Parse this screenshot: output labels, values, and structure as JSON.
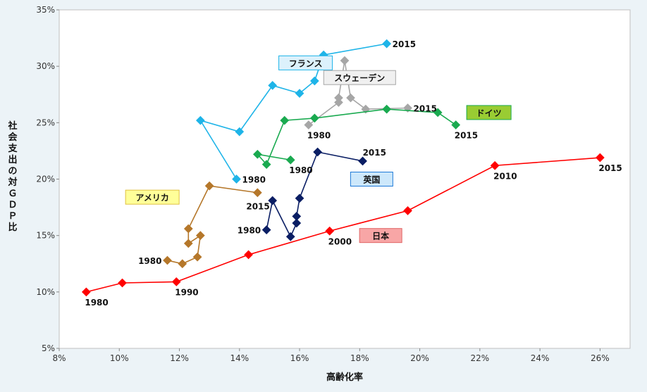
{
  "chart_data": {
    "type": "line",
    "xlabel": "高齢化率",
    "ylabel": "社会支出の対ＧＤＰ比",
    "xlim": [
      0.08,
      0.27
    ],
    "ylim": [
      0.05,
      0.35
    ],
    "x_ticks": [
      "8%",
      "10%",
      "12%",
      "14%",
      "16%",
      "18%",
      "20%",
      "22%",
      "24%",
      "26%"
    ],
    "y_ticks": [
      "5%",
      "10%",
      "15%",
      "20%",
      "25%",
      "30%",
      "35%"
    ],
    "grid": false,
    "series": [
      {
        "name": "日本",
        "color": "#ff0000",
        "points": [
          [
            0.089,
            0.1
          ],
          [
            0.101,
            0.108
          ],
          [
            0.119,
            0.109
          ],
          [
            0.143,
            0.133
          ],
          [
            0.17,
            0.154
          ],
          [
            0.196,
            0.172
          ],
          [
            0.225,
            0.212
          ],
          [
            0.26,
            0.219
          ]
        ],
        "labels": [
          {
            "text": "1980",
            "point": 0,
            "pos": "below"
          },
          {
            "text": "1990",
            "point": 2,
            "pos": "below"
          },
          {
            "text": "2000",
            "point": 4,
            "pos": "below"
          },
          {
            "text": "2010",
            "point": 6,
            "pos": "below"
          },
          {
            "text": "2015",
            "point": 7,
            "pos": "below"
          }
        ]
      },
      {
        "name": "フランス",
        "color": "#1eb4e8",
        "points": [
          [
            0.139,
            0.2
          ],
          [
            0.127,
            0.252
          ],
          [
            0.14,
            0.242
          ],
          [
            0.151,
            0.283
          ],
          [
            0.16,
            0.276
          ],
          [
            0.165,
            0.287
          ],
          [
            0.168,
            0.31
          ],
          [
            0.189,
            0.32
          ]
        ],
        "labels": [
          {
            "text": "1980",
            "point": 0,
            "pos": "right"
          },
          {
            "text": "2015",
            "point": 7,
            "pos": "right"
          }
        ]
      },
      {
        "name": "スウェーデン",
        "color": "#a6a6a6",
        "points": [
          [
            0.163,
            0.248
          ],
          [
            0.173,
            0.268
          ],
          [
            0.173,
            0.272
          ],
          [
            0.175,
            0.305
          ],
          [
            0.177,
            0.272
          ],
          [
            0.182,
            0.262
          ],
          [
            0.196,
            0.263
          ]
        ],
        "labels": [
          {
            "text": "1980",
            "point": 0,
            "pos": "below"
          },
          {
            "text": "2015",
            "point": 6,
            "pos": "right"
          }
        ]
      },
      {
        "name": "ドイツ",
        "color": "#1aaa50",
        "points": [
          [
            0.157,
            0.217
          ],
          [
            0.146,
            0.222
          ],
          [
            0.149,
            0.213
          ],
          [
            0.155,
            0.252
          ],
          [
            0.165,
            0.254
          ],
          [
            0.189,
            0.262
          ],
          [
            0.206,
            0.259
          ],
          [
            0.212,
            0.248
          ]
        ],
        "labels": [
          {
            "text": "1980",
            "point": 0,
            "pos": "below"
          },
          {
            "text": "2015",
            "point": 7,
            "pos": "below"
          }
        ]
      },
      {
        "name": "英国",
        "color": "#0a1e64",
        "points": [
          [
            0.149,
            0.155
          ],
          [
            0.151,
            0.181
          ],
          [
            0.157,
            0.149
          ],
          [
            0.159,
            0.161
          ],
          [
            0.159,
            0.167
          ],
          [
            0.16,
            0.183
          ],
          [
            0.166,
            0.224
          ],
          [
            0.181,
            0.216
          ]
        ],
        "labels": [
          {
            "text": "1980",
            "point": 0,
            "pos": "left"
          },
          {
            "text": "2015",
            "point": 7,
            "pos": "above"
          }
        ]
      },
      {
        "name": "アメリカ",
        "color": "#b5772a",
        "points": [
          [
            0.116,
            0.128
          ],
          [
            0.121,
            0.125
          ],
          [
            0.126,
            0.131
          ],
          [
            0.127,
            0.15
          ],
          [
            0.123,
            0.143
          ],
          [
            0.123,
            0.156
          ],
          [
            0.13,
            0.194
          ],
          [
            0.146,
            0.188
          ]
        ],
        "labels": [
          {
            "text": "1980",
            "point": 0,
            "pos": "left"
          },
          {
            "text": "2015",
            "point": 7,
            "pos": "belowleft"
          }
        ]
      }
    ],
    "legend_boxes": [
      {
        "text": "フランス",
        "fill": "#dcf1fc",
        "stroke": "#1eb4e8",
        "x": 0.162,
        "y": 0.303
      },
      {
        "text": "スウェーデン",
        "fill": "#f0f0f0",
        "stroke": "#a6a6a6",
        "x": 0.18,
        "y": 0.29
      },
      {
        "text": "ドイツ",
        "fill": "#99cc33",
        "stroke": "#1aaa50",
        "x": 0.223,
        "y": 0.259
      },
      {
        "text": "英国",
        "fill": "#cde8fb",
        "stroke": "#1e7ad8",
        "x": 0.184,
        "y": 0.2
      },
      {
        "text": "アメリカ",
        "fill": "#ffff99",
        "stroke": "#e0c040",
        "x": 0.111,
        "y": 0.184
      },
      {
        "text": "日本",
        "fill": "#f8a6a6",
        "stroke": "#e06666",
        "x": 0.187,
        "y": 0.15
      }
    ]
  }
}
